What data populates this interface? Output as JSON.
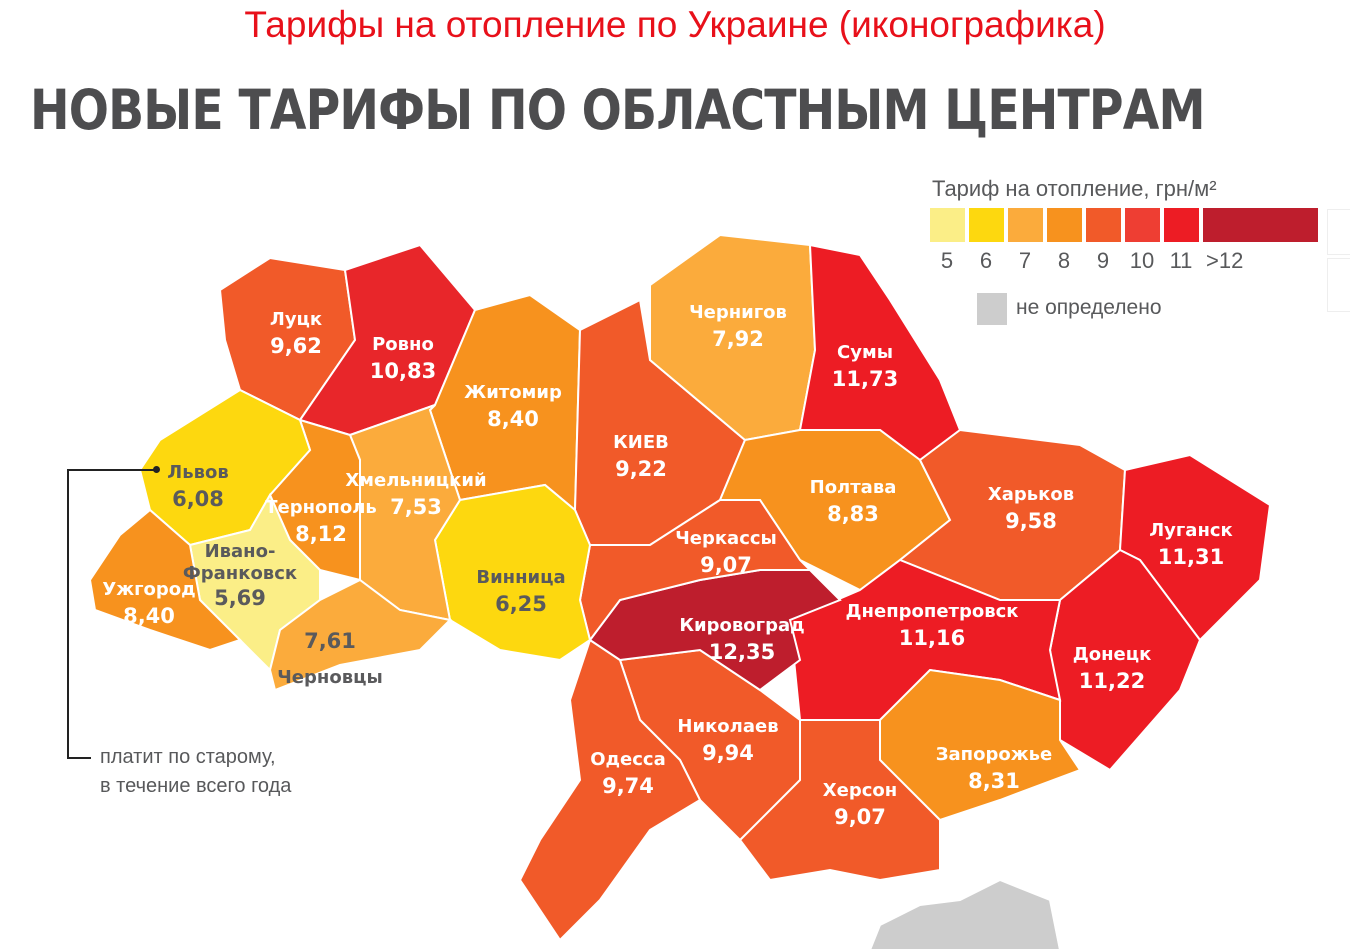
{
  "title": "Тарифы на отопление по Украине (иконографика)",
  "heading": "НОВЫЕ ТАРИФЫ ПО ОБЛАСТНЫМ ЦЕНТРАМ",
  "legend": {
    "title": "Тариф на отопление, грн/м²",
    "steps": [
      {
        "label": "5",
        "color": "#fbee87"
      },
      {
        "label": "6",
        "color": "#fdd80f"
      },
      {
        "label": "7",
        "color": "#fbab3c"
      },
      {
        "label": "8",
        "color": "#f7921e"
      },
      {
        "label": "9",
        "color": "#f15a29"
      },
      {
        "label": "10",
        "color": "#ee3e33"
      },
      {
        "label": "11",
        "color": "#ed1c24"
      },
      {
        "label": ">12",
        "color": "#be1e2d"
      }
    ],
    "undefined_label": "не определено",
    "undefined_color": "#cdcdcd"
  },
  "note": {
    "line1": "платит по старому,",
    "line2": "в течение всего года"
  },
  "regions": [
    {
      "id": "lutsk",
      "name": "Луцк",
      "value": "9,62",
      "color": "#f15a29"
    },
    {
      "id": "rivne",
      "name": "Ровно",
      "value": "10,83",
      "color": "#e8262a"
    },
    {
      "id": "zhytomyr",
      "name": "Житомир",
      "value": "8,40",
      "color": "#f7921e"
    },
    {
      "id": "kyiv",
      "name": "КИЕВ",
      "value": "9,22",
      "color": "#f15a29"
    },
    {
      "id": "chernihiv",
      "name": "Чернигов",
      "value": "7,92",
      "color": "#fbab3c"
    },
    {
      "id": "sumy",
      "name": "Сумы",
      "value": "11,73",
      "color": "#ed1c24"
    },
    {
      "id": "poltava",
      "name": "Полтава",
      "value": "8,83",
      "color": "#f7921e"
    },
    {
      "id": "kharkiv",
      "name": "Харьков",
      "value": "9,58",
      "color": "#f15a29"
    },
    {
      "id": "luhansk",
      "name": "Луганск",
      "value": "11,31",
      "color": "#ed1c24"
    },
    {
      "id": "donetsk",
      "name": "Донецк",
      "value": "11,22",
      "color": "#ed1c24"
    },
    {
      "id": "dnipro",
      "name": "Днепропетровск",
      "value": "11,16",
      "color": "#ed1c24"
    },
    {
      "id": "zaporizhzhia",
      "name": "Запорожье",
      "value": "8,31",
      "color": "#f7921e"
    },
    {
      "id": "kherson",
      "name": "Херсон",
      "value": "9,07",
      "color": "#f15a29"
    },
    {
      "id": "mykolaiv",
      "name": "Николаев",
      "value": "9,94",
      "color": "#f15a29"
    },
    {
      "id": "odesa",
      "name": "Одесса",
      "value": "9,74",
      "color": "#f15a29"
    },
    {
      "id": "kirovohrad",
      "name": "Кировоград",
      "value": "12,35",
      "color": "#be1e2d"
    },
    {
      "id": "cherkasy",
      "name": "Черкассы",
      "value": "9,07",
      "color": "#f15a29"
    },
    {
      "id": "vinnytsia",
      "name": "Винница",
      "value": "6,25",
      "color": "#fdd80f"
    },
    {
      "id": "khmelnytskyi",
      "name": "Хмельницкий",
      "value": "7,53",
      "color": "#fbab3c"
    },
    {
      "id": "ternopil",
      "name": "Тернополь",
      "value": "8,12",
      "color": "#f7921e"
    },
    {
      "id": "lviv",
      "name": "Львов",
      "value": "6,08",
      "color": "#fdd80f"
    },
    {
      "id": "ivano-frankivsk",
      "name": "Ивано-Франковск",
      "value": "5,69",
      "color": "#fbee87"
    },
    {
      "id": "uzhhorod",
      "name": "Ужгород",
      "value": "8,40",
      "color": "#f7921e"
    },
    {
      "id": "chernivtsi",
      "name": "Черновцы",
      "value": "7,61",
      "color": "#fbab3c"
    },
    {
      "id": "crimea",
      "name": "",
      "value": "",
      "color": "#cdcdcd"
    }
  ]
}
